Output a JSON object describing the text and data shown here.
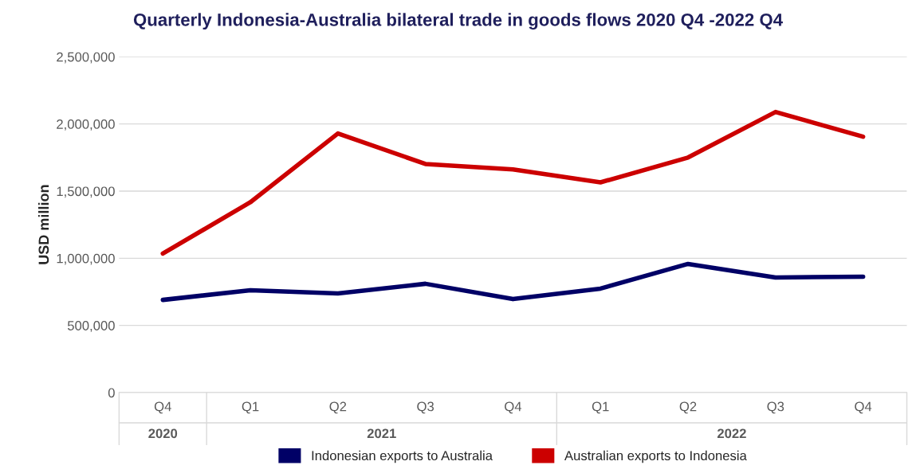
{
  "chart_data": {
    "type": "line",
    "title": "Quarterly Indonesia-Australia bilateral trade in goods flows 2020 Q4 -2022 Q4",
    "ylabel": "USD million",
    "categories": [
      "Q4",
      "Q1",
      "Q2",
      "Q3",
      "Q4",
      "Q1",
      "Q2",
      "Q3",
      "Q4"
    ],
    "annotations": [
      "2020",
      "2021",
      "2022"
    ],
    "series": [
      {
        "name": "Indonesian exports to Australia",
        "color": "#000066",
        "values": [
          690000,
          762000,
          738000,
          810000,
          696000,
          774000,
          958000,
          857000,
          863000
        ]
      },
      {
        "name": "Australian exports to Indonesia",
        "color": "#cc0000",
        "values": [
          1035000,
          1417000,
          1929000,
          1702000,
          1661000,
          1565000,
          1750000,
          2089000,
          1905000
        ]
      }
    ],
    "ylim": [
      0,
      2500000
    ],
    "yticks": [
      {
        "value": 0,
        "label": "0"
      },
      {
        "value": 500000,
        "label": "500,000"
      },
      {
        "value": 1000000,
        "label": "1,000,000"
      },
      {
        "value": 1500000,
        "label": "1,500,000"
      },
      {
        "value": 2000000,
        "label": "2,000,000"
      },
      {
        "value": 2500000,
        "label": "2,500,000"
      }
    ],
    "grid": "y",
    "legend": "bottom",
    "marker": "none",
    "line_style": "solid"
  }
}
